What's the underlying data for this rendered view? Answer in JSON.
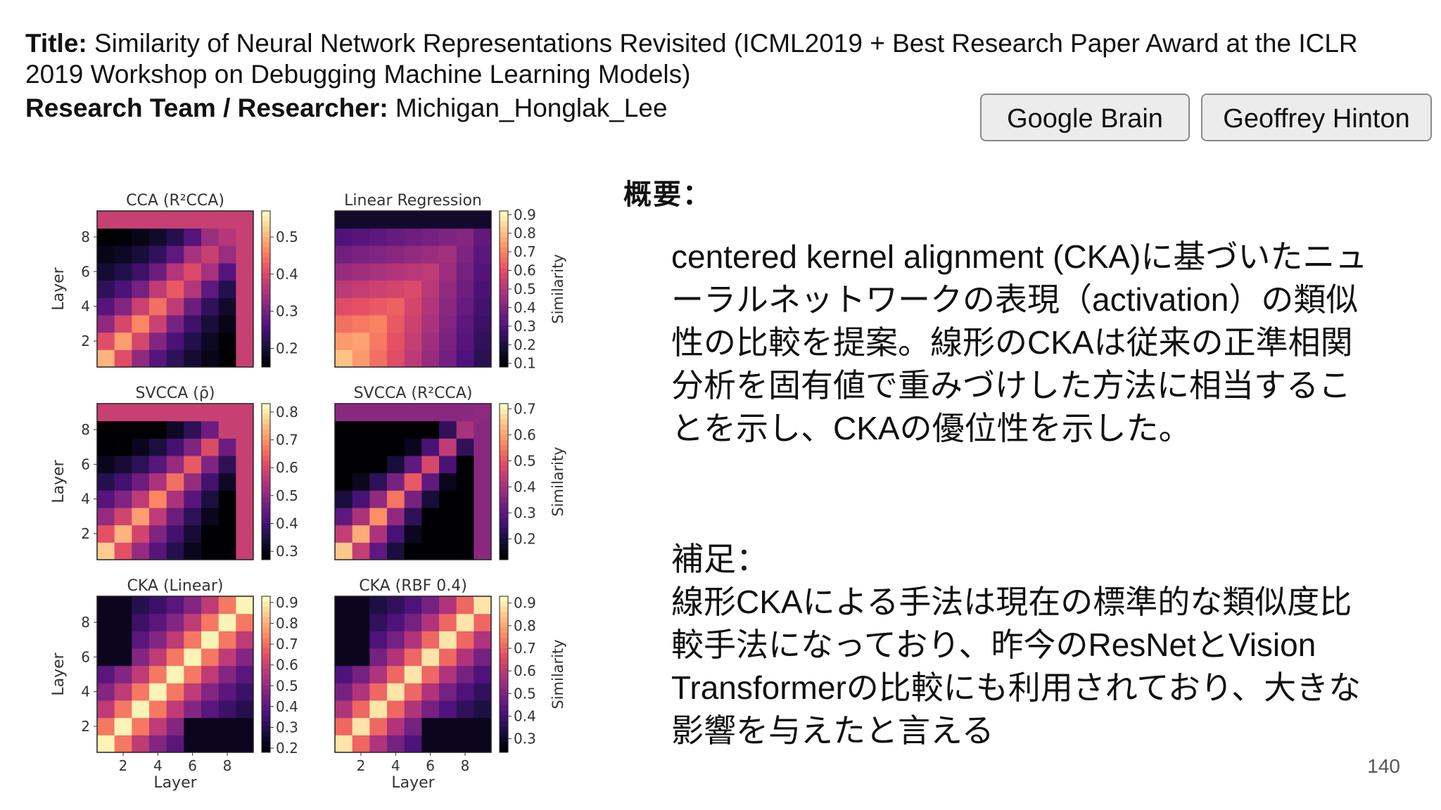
{
  "header": {
    "title_label": "Title:",
    "title_text": "Similarity of Neural Network Representations Revisited (ICML2019 + Best Research Paper Award at the ICLR 2019 Workshop on Debugging Machine Learning Models)",
    "researcher_label": "Research Team / Researcher:",
    "researcher_text": "Michigan_Honglak_Lee"
  },
  "tags": [
    "Google Brain",
    "Geoffrey Hinton"
  ],
  "summary": {
    "label": "概要：",
    "text": "centered kernel alignment (CKA)に基づいたニューラルネットワークの表現（activation）の類似性の比較を提案。線形のCKAは従来の正準相関分析を固有値で重みづけした方法に相当することを示し、CKAの優位性を示した。"
  },
  "note": {
    "label": "補足：",
    "text": "線形CKAによる手法は現在の標準的な類似度比較手法になっており、昨今のResNetとVision Transformerの比較にも利用されており、大きな影響を与えたと言える"
  },
  "page_number": "140",
  "chart_data": [
    {
      "type": "heatmap",
      "title": "CCA (R²CCA)",
      "ylabel": "Layer",
      "xlabel": "",
      "colorbar_ticks": [
        "0.5",
        "0.4",
        "0.3",
        "0.2"
      ],
      "colorbar_range": [
        0.15,
        0.57
      ],
      "colorbar_label": "",
      "pattern": "cca"
    },
    {
      "type": "heatmap",
      "title": "Linear Regression",
      "ylabel": "",
      "xlabel": "",
      "colorbar_ticks": [
        "0.9",
        "0.8",
        "0.7",
        "0.6",
        "0.5",
        "0.4",
        "0.3",
        "0.2",
        "0.1"
      ],
      "colorbar_range": [
        0.08,
        0.92
      ],
      "colorbar_label": "Similarity",
      "pattern": "linreg"
    },
    {
      "type": "heatmap",
      "title": "SVCCA (ρ̄)",
      "ylabel": "Layer",
      "xlabel": "",
      "colorbar_ticks": [
        "0.8",
        "0.7",
        "0.6",
        "0.5",
        "0.4",
        "0.3"
      ],
      "colorbar_range": [
        0.27,
        0.83
      ],
      "colorbar_label": "",
      "pattern": "svcca"
    },
    {
      "type": "heatmap",
      "title": "SVCCA (R²CCA)",
      "ylabel": "",
      "xlabel": "",
      "colorbar_ticks": [
        "0.7",
        "0.6",
        "0.5",
        "0.4",
        "0.3",
        "0.2"
      ],
      "colorbar_range": [
        0.12,
        0.72
      ],
      "colorbar_label": "Similarity",
      "pattern": "svcca2"
    },
    {
      "type": "heatmap",
      "title": "CKA (Linear)",
      "ylabel": "Layer",
      "xlabel": "Layer",
      "colorbar_ticks": [
        "0.9",
        "0.8",
        "0.7",
        "0.6",
        "0.5",
        "0.4",
        "0.3",
        "0.2"
      ],
      "colorbar_range": [
        0.18,
        0.93
      ],
      "colorbar_label": "",
      "pattern": "cka"
    },
    {
      "type": "heatmap",
      "title": "CKA (RBF 0.4)",
      "ylabel": "",
      "xlabel": "Layer",
      "colorbar_ticks": [
        "0.9",
        "0.8",
        "0.7",
        "0.6",
        "0.5",
        "0.4",
        "0.3"
      ],
      "colorbar_range": [
        0.24,
        0.93
      ],
      "colorbar_label": "Similarity",
      "pattern": "ckarbf"
    }
  ],
  "axis_ticks": {
    "y": [
      "2",
      "4",
      "6",
      "8"
    ],
    "x": [
      "2",
      "4",
      "6",
      "8"
    ]
  }
}
